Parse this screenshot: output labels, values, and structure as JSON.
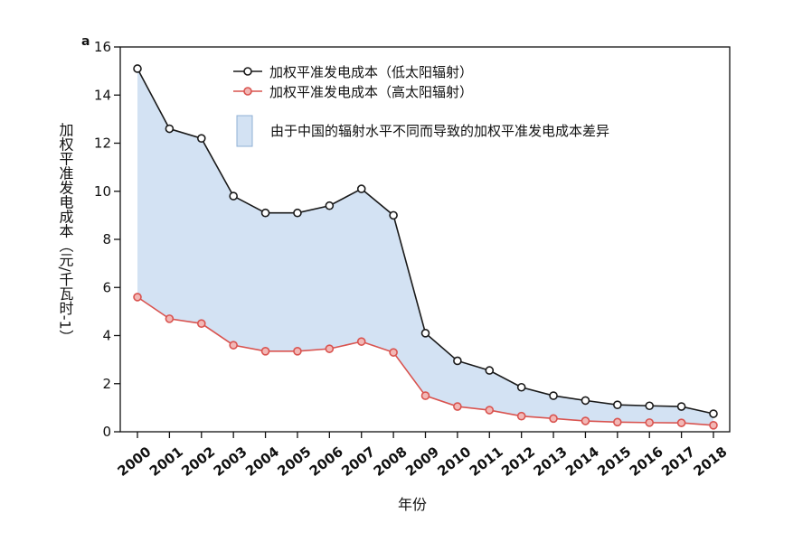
{
  "chart_data": {
    "type": "line",
    "panel_label": "a",
    "xlabel": "年份",
    "ylabel": "加权平准发电成本（元/千瓦时-1）",
    "ylim": [
      0,
      16
    ],
    "yticks": [
      0,
      2,
      4,
      6,
      8,
      10,
      12,
      14,
      16
    ],
    "categories": [
      "2000",
      "2001",
      "2002",
      "2003",
      "2004",
      "2005",
      "2006",
      "2007",
      "2008",
      "2009",
      "2010",
      "2011",
      "2012",
      "2013",
      "2014",
      "2015",
      "2016",
      "2017",
      "2018"
    ],
    "series": [
      {
        "name": "加权平准发电成本（低太阳辐射）",
        "color": "#1a1a1a",
        "values": [
          15.1,
          12.6,
          12.2,
          9.8,
          9.1,
          9.1,
          9.4,
          10.1,
          9.0,
          4.1,
          2.95,
          2.55,
          1.85,
          1.5,
          1.3,
          1.12,
          1.08,
          1.05,
          0.75
        ]
      },
      {
        "name": "加权平准发电成本（高太阳辐射）",
        "color": "#d9534f",
        "values": [
          5.6,
          4.7,
          4.5,
          3.6,
          3.35,
          3.35,
          3.45,
          3.75,
          3.3,
          1.5,
          1.05,
          0.9,
          0.65,
          0.55,
          0.45,
          0.4,
          0.38,
          0.37,
          0.27
        ]
      }
    ],
    "fill_between": {
      "label": "由于中国的辐射水平不同而导致的加权平准发电成本差异",
      "color": "#d3e2f3"
    },
    "grid": false,
    "legend_position": "top-right"
  }
}
